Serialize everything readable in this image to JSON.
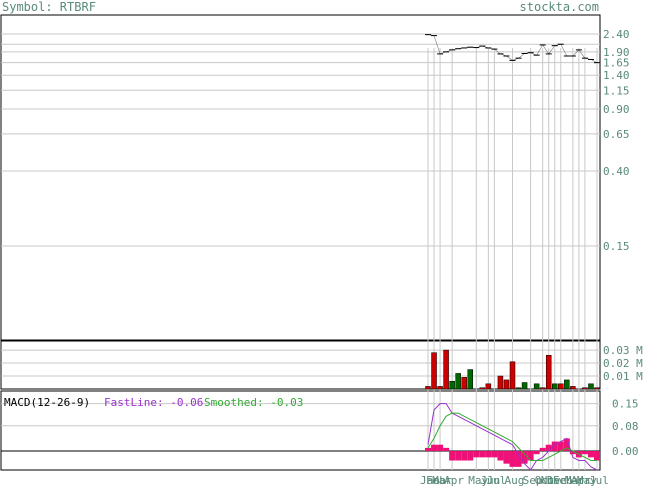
{
  "header": {
    "symbol_label": "Symbol: RTBRF",
    "site_label": "stockta.com"
  },
  "colors": {
    "grid": "#c8c8c8",
    "frame": "#000000",
    "axis_text": "#5a8a7a",
    "up": "#cc0000",
    "down": "#006600",
    "fast": "#9933cc",
    "smooth": "#33aa33",
    "hist": "#ee1177"
  },
  "chart_data": [
    {
      "type": "line",
      "panel": "price",
      "scale": "log",
      "ylim": [
        0.05,
        2.7
      ],
      "yticks": [
        "2.40",
        "1.90",
        "1.65",
        "1.40",
        "1.15",
        "0.90",
        "0.65",
        "0.40",
        "0.15"
      ],
      "ytick_values": [
        2.4,
        2.1,
        1.9,
        1.65,
        1.4,
        1.15,
        0.9,
        0.65,
        0.4,
        0.15
      ],
      "ytick_shown": [
        true,
        false,
        true,
        true,
        true,
        true,
        true,
        true,
        true,
        true
      ],
      "x": [
        0,
        1,
        2,
        3,
        4,
        5,
        6,
        7,
        8,
        9,
        10,
        11,
        12,
        13,
        14,
        15,
        16,
        17,
        18,
        19,
        20,
        21,
        22,
        23,
        24,
        25,
        26,
        27,
        28
      ],
      "close": [
        2.38,
        2.35,
        1.85,
        1.9,
        1.95,
        1.98,
        2.0,
        2.02,
        2.01,
        2.05,
        2.0,
        1.97,
        1.85,
        1.8,
        1.7,
        1.75,
        1.86,
        1.88,
        1.82,
        2.08,
        1.85,
        2.06,
        2.1,
        1.8,
        1.8,
        1.95,
        1.75,
        1.72,
        1.65
      ]
    },
    {
      "type": "bar",
      "panel": "volume",
      "yticks": [
        "0.03 M",
        "0.02 M",
        "0.01 M"
      ],
      "ytick_values": [
        0.03,
        0.02,
        0.01
      ],
      "ylim": [
        0,
        0.037
      ],
      "values": [
        0.002,
        0.028,
        0.002,
        0.03,
        0.006,
        0.012,
        0.009,
        0.015,
        0.0,
        0.001,
        0.004,
        0.0,
        0.01,
        0.007,
        0.021,
        0.001,
        0.005,
        0.0,
        0.004,
        0.001,
        0.026,
        0.004,
        0.004,
        0.007,
        0.002,
        0.0,
        0.001,
        0.004,
        0.001
      ],
      "up": [
        true,
        true,
        true,
        true,
        false,
        false,
        true,
        false,
        true,
        true,
        true,
        true,
        true,
        true,
        true,
        false,
        false,
        true,
        false,
        true,
        true,
        false,
        true,
        false,
        true,
        true,
        true,
        false,
        true
      ]
    },
    {
      "type": "line",
      "panel": "macd",
      "title": "MACD(12-26-9)",
      "fast_label": "FastLine: -0.06",
      "smooth_label": "Smoothed: -0.03",
      "yticks": [
        "0.15",
        "0.08",
        "0.00"
      ],
      "ytick_values": [
        0.15,
        0.08,
        0.0
      ],
      "ylim": [
        -0.06,
        0.19
      ],
      "fast": [
        0.02,
        0.13,
        0.15,
        0.15,
        0.12,
        0.11,
        0.1,
        0.09,
        0.08,
        0.07,
        0.06,
        0.05,
        0.04,
        0.03,
        0.02,
        -0.01,
        -0.04,
        -0.06,
        -0.03,
        -0.02,
        0.0,
        0.02,
        0.03,
        0.04,
        -0.02,
        -0.03,
        -0.03,
        -0.05,
        -0.06
      ],
      "smooth": [
        0.01,
        0.04,
        0.08,
        0.11,
        0.12,
        0.12,
        0.11,
        0.1,
        0.09,
        0.08,
        0.07,
        0.06,
        0.05,
        0.04,
        0.03,
        0.01,
        -0.01,
        -0.03,
        -0.03,
        -0.03,
        -0.02,
        -0.01,
        0.0,
        0.01,
        0.0,
        -0.01,
        -0.02,
        -0.03,
        -0.03
      ],
      "histogram": [
        0.01,
        0.02,
        0.02,
        0.01,
        -0.03,
        -0.03,
        -0.03,
        -0.03,
        -0.02,
        -0.02,
        -0.02,
        -0.02,
        -0.03,
        -0.04,
        -0.05,
        -0.05,
        -0.04,
        -0.03,
        -0.01,
        0.01,
        0.02,
        0.03,
        0.03,
        0.04,
        -0.01,
        -0.02,
        -0.01,
        -0.02,
        -0.03
      ]
    }
  ],
  "x_labels": [
    {
      "i": 0,
      "t": "Jan"
    },
    {
      "i": 1,
      "t": "Feb"
    },
    {
      "i": 2,
      "t": "Mar"
    },
    {
      "i": 4,
      "t": "Apr"
    },
    {
      "i": 8,
      "t": "May"
    },
    {
      "i": 10,
      "t": "Jun"
    },
    {
      "i": 11,
      "t": "Jul"
    },
    {
      "i": 14,
      "t": "Aug"
    },
    {
      "i": 17,
      "t": "Sep"
    },
    {
      "i": 19,
      "t": "Oct"
    },
    {
      "i": 20,
      "t": "Nov"
    },
    {
      "i": 21,
      "t": "Dec"
    },
    {
      "i": 22,
      "t": "Feb"
    },
    {
      "i": 24,
      "t": "Mar"
    },
    {
      "i": 25,
      "t": "Apr"
    },
    {
      "i": 26,
      "t": "May"
    },
    {
      "i": 28,
      "t": "Jul"
    }
  ]
}
